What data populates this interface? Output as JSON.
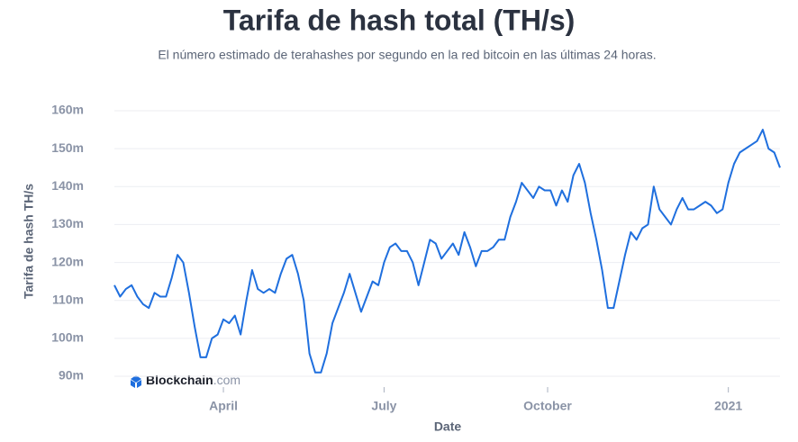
{
  "chart_data": {
    "type": "line",
    "title": "Tarifa de hash total (TH/s)",
    "subtitle": "El número estimado de terahashes por segundo en la red bitcoin en las últimas 24 horas.",
    "y_label": "Tarifa de hash TH/s",
    "x_label": "Date",
    "watermark": {
      "brand": "Blockchain",
      "suffix": ".com"
    },
    "color": "#1f6fde",
    "grid": true,
    "values": [
      114,
      111,
      113,
      114,
      111,
      109,
      108,
      112,
      111,
      111,
      116,
      122,
      120,
      112,
      103,
      95,
      95,
      100,
      101,
      105,
      104,
      106,
      101,
      110,
      118,
      113,
      112,
      113,
      112,
      117,
      121,
      122,
      117,
      110,
      96,
      91,
      91,
      96,
      104,
      108,
      112,
      117,
      112,
      107,
      111,
      115,
      114,
      120,
      124,
      125,
      123,
      123,
      120,
      114,
      120,
      126,
      125,
      121,
      123,
      125,
      122,
      128,
      124,
      119,
      123,
      123,
      124,
      126,
      126,
      132,
      136,
      141,
      139,
      137,
      140,
      139,
      139,
      135,
      139,
      136,
      143,
      146,
      141,
      133,
      126,
      118,
      108,
      108,
      115,
      122,
      128,
      126,
      129,
      130,
      140,
      134,
      132,
      130,
      134,
      137,
      134,
      134,
      135,
      136,
      135,
      133,
      134,
      141,
      146,
      149,
      150,
      151,
      152,
      155,
      150,
      149,
      145
    ],
    "xlim": [
      0,
      116
    ],
    "xticks": [
      {
        "value": 19,
        "label": "April"
      },
      {
        "value": 47,
        "label": "July"
      },
      {
        "value": 75.5,
        "label": "October"
      },
      {
        "value": 107,
        "label": "2021"
      }
    ],
    "ylim": [
      90,
      160
    ],
    "yticks": [
      {
        "value": 90,
        "label": "90m"
      },
      {
        "value": 100,
        "label": "100m"
      },
      {
        "value": 110,
        "label": "110m"
      },
      {
        "value": 120,
        "label": "120m"
      },
      {
        "value": 130,
        "label": "130m"
      },
      {
        "value": 140,
        "label": "140m"
      },
      {
        "value": 150,
        "label": "150m"
      },
      {
        "value": 160,
        "label": "160m"
      }
    ]
  }
}
